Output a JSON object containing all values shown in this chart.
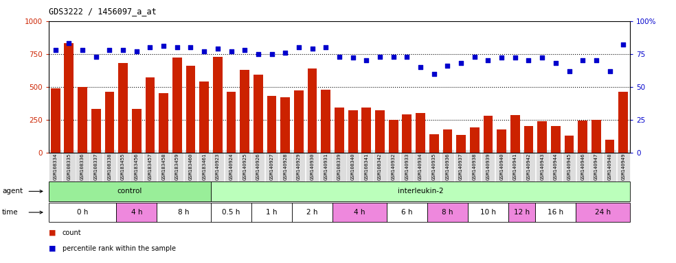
{
  "title": "GDS3222 / 1456097_a_at",
  "gsm_labels": [
    "GSM108334",
    "GSM108335",
    "GSM108336",
    "GSM108337",
    "GSM108338",
    "GSM183455",
    "GSM183456",
    "GSM183457",
    "GSM183458",
    "GSM183459",
    "GSM183460",
    "GSM183461",
    "GSM140923",
    "GSM140924",
    "GSM140925",
    "GSM140926",
    "GSM140927",
    "GSM140928",
    "GSM140929",
    "GSM140930",
    "GSM140931",
    "GSM108339",
    "GSM108340",
    "GSM108341",
    "GSM108342",
    "GSM140932",
    "GSM140933",
    "GSM140934",
    "GSM140935",
    "GSM140936",
    "GSM140937",
    "GSM140938",
    "GSM140939",
    "GSM140940",
    "GSM140941",
    "GSM140942",
    "GSM140943",
    "GSM140944",
    "GSM140945",
    "GSM140946",
    "GSM140947",
    "GSM140948",
    "GSM140949"
  ],
  "bar_values": [
    490,
    830,
    500,
    330,
    460,
    680,
    330,
    570,
    450,
    720,
    660,
    540,
    730,
    460,
    630,
    590,
    430,
    420,
    470,
    640,
    480,
    340,
    320,
    340,
    320,
    250,
    290,
    300,
    140,
    175,
    135,
    190,
    280,
    175,
    285,
    200,
    240,
    200,
    130,
    245,
    250,
    100,
    460
  ],
  "dot_values": [
    78,
    83,
    78,
    73,
    78,
    78,
    77,
    80,
    81,
    80,
    80,
    77,
    79,
    77,
    78,
    75,
    75,
    76,
    80,
    79,
    80,
    73,
    72,
    70,
    73,
    73,
    73,
    65,
    60,
    66,
    68,
    73,
    70,
    72,
    72,
    70,
    72,
    68,
    62,
    70,
    70,
    62,
    82
  ],
  "bar_color": "#cc2200",
  "dot_color": "#0000cc",
  "ylim_left": [
    0,
    1000
  ],
  "ylim_right": [
    0,
    100
  ],
  "yticks_left": [
    0,
    250,
    500,
    750,
    1000
  ],
  "yticks_right": [
    0,
    25,
    50,
    75,
    100
  ],
  "agent_groups": [
    {
      "label": "control",
      "start": 0,
      "end": 12,
      "color": "#99ee99"
    },
    {
      "label": "interleukin-2",
      "start": 12,
      "end": 43,
      "color": "#bbffbb"
    }
  ],
  "time_groups": [
    {
      "label": "0 h",
      "start": 0,
      "end": 5,
      "color": "#ffffff"
    },
    {
      "label": "4 h",
      "start": 5,
      "end": 8,
      "color": "#ee88dd"
    },
    {
      "label": "8 h",
      "start": 8,
      "end": 12,
      "color": "#ffffff"
    },
    {
      "label": "0.5 h",
      "start": 12,
      "end": 15,
      "color": "#ffffff"
    },
    {
      "label": "1 h",
      "start": 15,
      "end": 18,
      "color": "#ffffff"
    },
    {
      "label": "2 h",
      "start": 18,
      "end": 21,
      "color": "#ffffff"
    },
    {
      "label": "4 h",
      "start": 21,
      "end": 25,
      "color": "#ee88dd"
    },
    {
      "label": "6 h",
      "start": 25,
      "end": 28,
      "color": "#ffffff"
    },
    {
      "label": "8 h",
      "start": 28,
      "end": 31,
      "color": "#ee88dd"
    },
    {
      "label": "10 h",
      "start": 31,
      "end": 34,
      "color": "#ffffff"
    },
    {
      "label": "12 h",
      "start": 34,
      "end": 36,
      "color": "#ee88dd"
    },
    {
      "label": "16 h",
      "start": 36,
      "end": 39,
      "color": "#ffffff"
    },
    {
      "label": "24 h",
      "start": 39,
      "end": 43,
      "color": "#ee88dd"
    }
  ],
  "tick_color_left": "#cc2200",
  "tick_color_right": "#0000cc",
  "xtick_bg": "#dddddd"
}
